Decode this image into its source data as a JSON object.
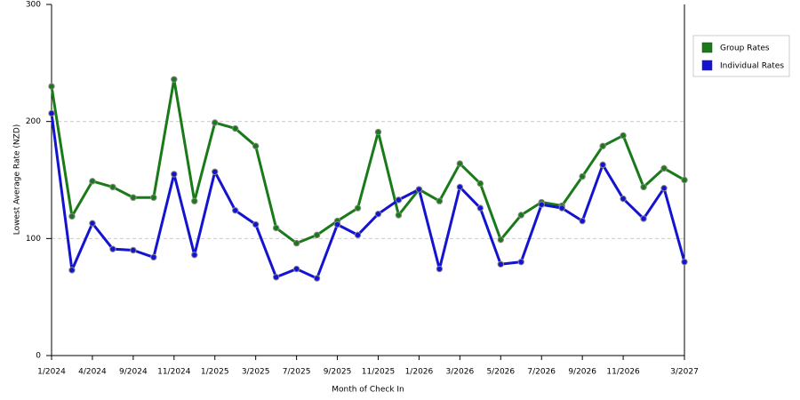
{
  "chart_data": {
    "type": "line",
    "x_label": "Month of Check In",
    "y_label": "Lowest Average Rate (NZD)",
    "categories": [
      "1/2024",
      null,
      "4/2024",
      null,
      "9/2024",
      null,
      "11/2024",
      null,
      "1/2025",
      null,
      "3/2025",
      null,
      "7/2025",
      null,
      "9/2025",
      null,
      "11/2025",
      null,
      "1/2026",
      null,
      "3/2026",
      null,
      "5/2026",
      null,
      "7/2026",
      null,
      "9/2026",
      null,
      "11/2026",
      null,
      null,
      "3/2027"
    ],
    "series": [
      {
        "name": "Group Rates",
        "color": "#1a7a1a",
        "values": [
          230,
          119,
          149,
          144,
          135,
          135,
          236,
          132,
          199,
          194,
          179,
          109,
          96,
          103,
          115,
          126,
          191,
          120,
          142,
          132,
          164,
          147,
          99,
          120,
          131,
          128,
          153,
          179,
          188,
          144,
          160,
          150
        ]
      },
      {
        "name": "Individual Rates",
        "color": "#1414d0",
        "values": [
          207,
          73,
          113,
          91,
          90,
          84,
          155,
          86,
          157,
          124,
          112,
          67,
          74,
          66,
          112,
          103,
          121,
          133,
          142,
          74,
          144,
          126,
          78,
          80,
          129,
          126,
          115,
          163,
          134,
          117,
          143,
          80
        ]
      }
    ],
    "ylim": [
      0,
      300
    ],
    "yticks": [
      0,
      100,
      200,
      300
    ],
    "grid": true,
    "legend": "right"
  }
}
